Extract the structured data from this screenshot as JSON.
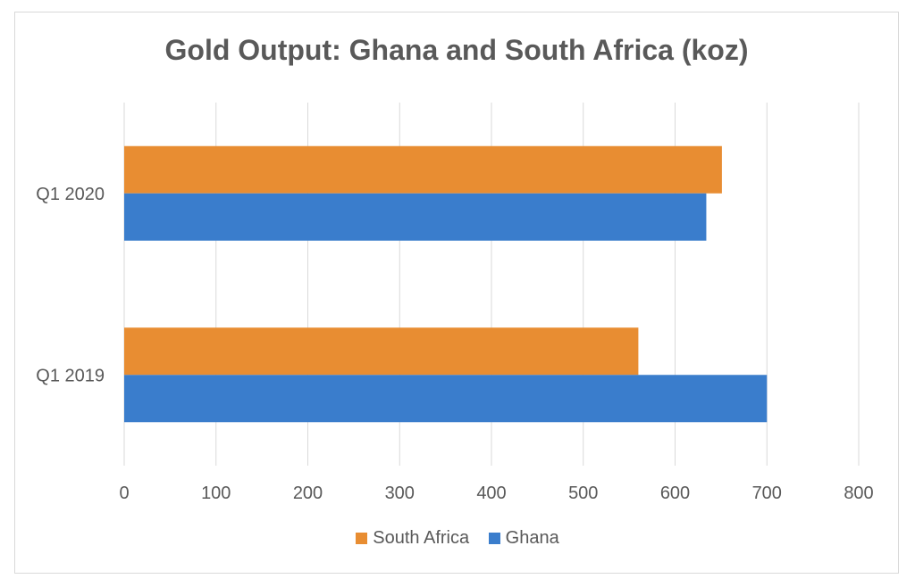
{
  "chart_data": {
    "type": "bar",
    "orientation": "horizontal",
    "title": "Gold Output: Ghana and South Africa (koz)",
    "categories": [
      "Q1 2019",
      "Q1 2020"
    ],
    "series": [
      {
        "name": "South Africa",
        "color": "#E88D32",
        "values": [
          560,
          651
        ]
      },
      {
        "name": "Ghana",
        "color": "#3A7DCC",
        "values": [
          700,
          634
        ]
      }
    ],
    "xlim": [
      0,
      800
    ],
    "x_ticks": [
      0,
      100,
      200,
      300,
      400,
      500,
      600,
      700,
      800
    ],
    "grid": true,
    "legend_position": "bottom"
  }
}
